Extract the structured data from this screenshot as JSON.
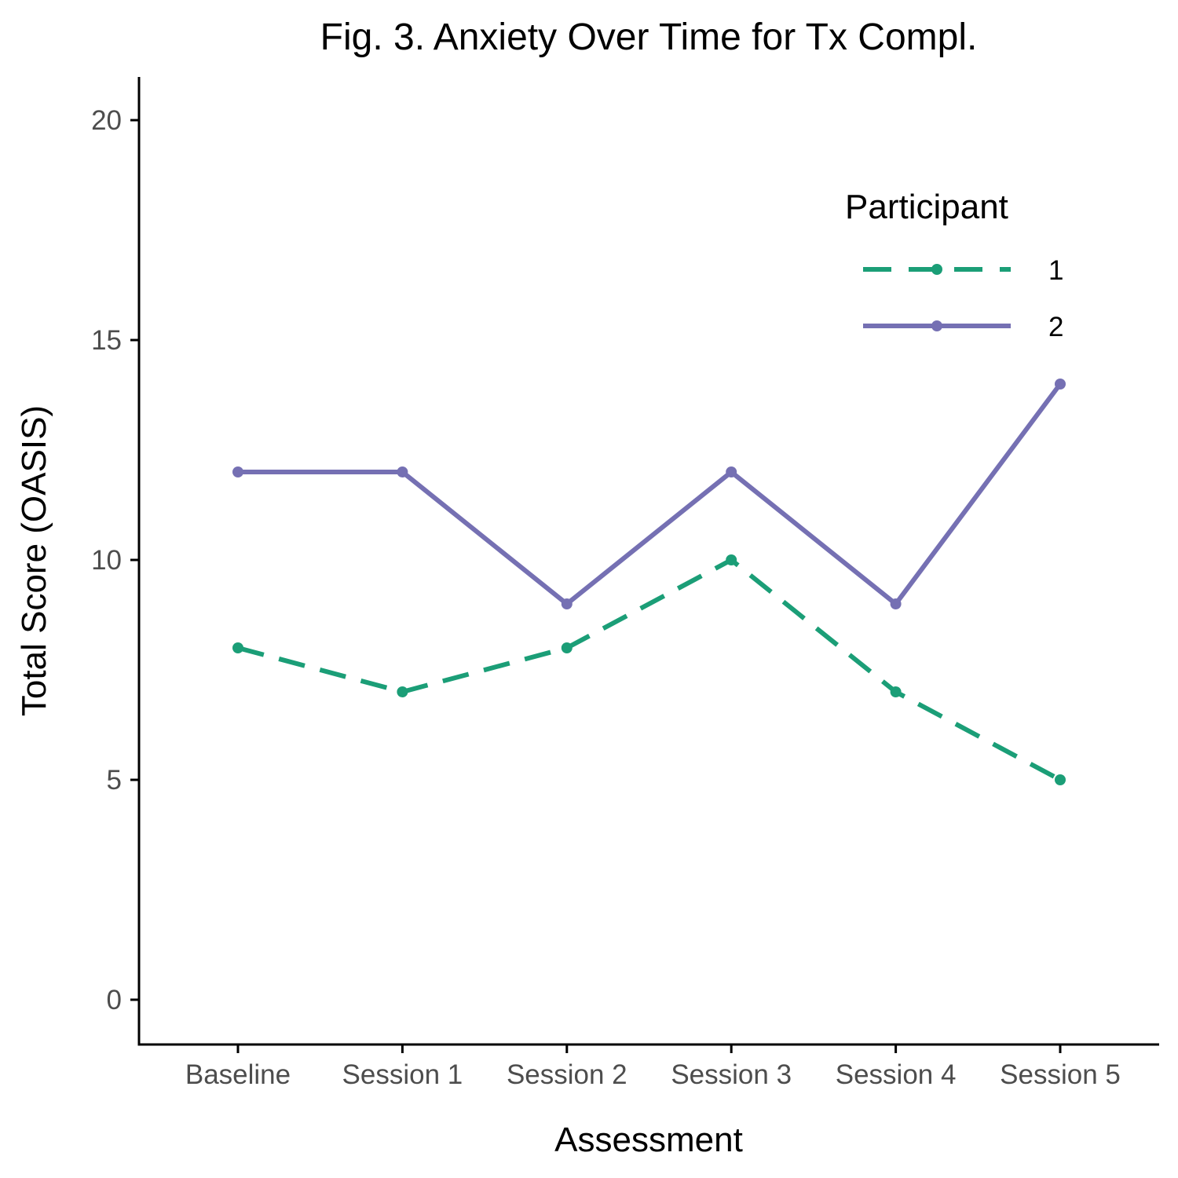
{
  "chart_data": {
    "type": "line",
    "title": "Fig. 3. Anxiety Over Time for Tx Compl.",
    "xlabel": "Assessment",
    "ylabel": "Total Score (OASIS)",
    "categories": [
      "Baseline",
      "Session 1",
      "Session 2",
      "Session 3",
      "Session 4",
      "Session 5"
    ],
    "ylim": [
      -1,
      21
    ],
    "yticks": [
      0,
      5,
      10,
      15,
      20
    ],
    "grid": false,
    "legend": {
      "title": "Participant",
      "position": "top-right"
    },
    "series": [
      {
        "name": "1",
        "values": [
          8,
          7,
          8,
          10,
          7,
          5
        ],
        "color": "#1b9e77",
        "linestyle": "dashed"
      },
      {
        "name": "2",
        "values": [
          12,
          12,
          9,
          12,
          9,
          14
        ],
        "color": "#7570b3",
        "linestyle": "solid"
      }
    ]
  }
}
